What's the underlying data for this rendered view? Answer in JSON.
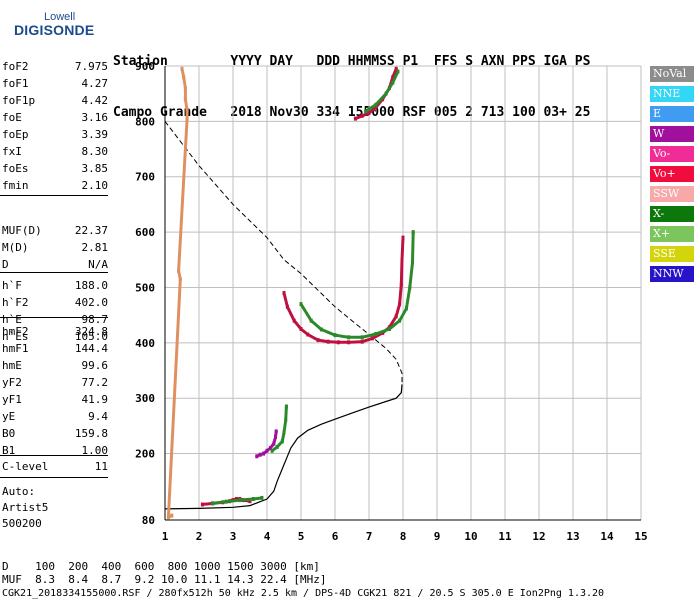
{
  "logo": {
    "line1": "Lowell",
    "line2": "DIGISONDE"
  },
  "header": {
    "row1": "Station        YYYY DAY   DDD HHMMSS P1  FFS S AXN PPS IGA PS",
    "row2": "Campo Grande   2018 Nov30 334 155000 RSF 005 2 713 100 03+ 25"
  },
  "params_group1": [
    {
      "k": "foF2",
      "v": "7.975"
    },
    {
      "k": "foF1",
      "v": "4.27"
    },
    {
      "k": "foF1p",
      "v": "4.42"
    },
    {
      "k": "foE",
      "v": "3.16"
    },
    {
      "k": "foEp",
      "v": "3.39"
    },
    {
      "k": "fxI",
      "v": "8.30"
    },
    {
      "k": "foEs",
      "v": "3.85"
    },
    {
      "k": "fmin",
      "v": "2.10"
    }
  ],
  "params_group2": [
    {
      "k": "MUF(D)",
      "v": "22.37"
    },
    {
      "k": "M(D)",
      "v": "2.81"
    },
    {
      "k": "D",
      "v": "N/A"
    }
  ],
  "params_group3": [
    {
      "k": "h`F",
      "v": "188.0"
    },
    {
      "k": "h`F2",
      "v": "402.0"
    },
    {
      "k": "h`E",
      "v": "98.7"
    },
    {
      "k": "h`Es",
      "v": "105.0"
    }
  ],
  "params_group4": [
    {
      "k": "hmF2",
      "v": "324.8"
    },
    {
      "k": "hmF1",
      "v": "144.4"
    },
    {
      "k": "hmE",
      "v": "99.6"
    },
    {
      "k": "yF2",
      "v": "77.2"
    },
    {
      "k": "yF1",
      "v": "41.9"
    },
    {
      "k": "yE",
      "v": "9.4"
    },
    {
      "k": "B0",
      "v": "159.8"
    },
    {
      "k": "B1",
      "v": "1.00"
    }
  ],
  "clevel": {
    "k": "C-level",
    "v": "11"
  },
  "auto": [
    "Auto:",
    "Artist5",
    "500200"
  ],
  "legend": [
    {
      "label": "NoVal",
      "color": "#8c8c8c"
    },
    {
      "label": "NNE",
      "color": "#33d6f5"
    },
    {
      "label": "E",
      "color": "#3f9cf0"
    },
    {
      "label": "W",
      "color": "#a0109c"
    },
    {
      "label": "Vo-",
      "color": "#f02c96"
    },
    {
      "label": "Vo+",
      "color": "#f00c3c"
    },
    {
      "label": "SSW",
      "color": "#f7a8a8"
    },
    {
      "label": "X-",
      "color": "#0c780c"
    },
    {
      "label": "X+",
      "color": "#7cc45c"
    },
    {
      "label": "SSE",
      "color": "#d4d40c"
    },
    {
      "label": "NNW",
      "color": "#2814c8"
    }
  ],
  "footer": {
    "row1": "D    100  200  400  600  800 1000 1500 3000 [km]",
    "row2": "MUF  8.3  8.4  8.7  9.2 10.0 11.1 14.3 22.4 [MHz]",
    "row3": "CGK21_2018334155000.RSF / 280fx512h 50 kHz 2.5 km / DPS-4D CGK21 821 / 20.5 S 305.0 E Ion2Png 1.3.20"
  },
  "chart_data": {
    "type": "scatter",
    "title": "",
    "xlabel": "",
    "ylabel": "",
    "xlim": [
      1,
      15
    ],
    "ylim": [
      80,
      900
    ],
    "xticks": [
      1,
      2,
      3,
      4,
      5,
      6,
      7,
      8,
      9,
      10,
      11,
      12,
      13,
      14,
      15
    ],
    "yticks": [
      80,
      200,
      300,
      400,
      500,
      600,
      700,
      800,
      900
    ],
    "grid": true,
    "series": [
      {
        "name": "O-trace",
        "color": "#c01040",
        "points": [
          [
            4.5,
            490
          ],
          [
            4.6,
            465
          ],
          [
            4.8,
            440
          ],
          [
            5.0,
            425
          ],
          [
            5.2,
            415
          ],
          [
            5.5,
            405
          ],
          [
            5.8,
            402
          ],
          [
            6.1,
            401
          ],
          [
            6.4,
            401
          ],
          [
            6.8,
            402
          ],
          [
            7.1,
            408
          ],
          [
            7.4,
            418
          ],
          [
            7.6,
            428
          ],
          [
            7.8,
            448
          ],
          [
            7.9,
            470
          ],
          [
            7.95,
            505
          ],
          [
            7.97,
            550
          ],
          [
            8.0,
            590
          ]
        ]
      },
      {
        "name": "X-trace",
        "color": "#2a8a2a",
        "points": [
          [
            5.0,
            470
          ],
          [
            5.3,
            440
          ],
          [
            5.6,
            424
          ],
          [
            6.0,
            414
          ],
          [
            6.4,
            410
          ],
          [
            6.8,
            410
          ],
          [
            7.2,
            416
          ],
          [
            7.6,
            425
          ],
          [
            7.9,
            440
          ],
          [
            8.1,
            462
          ],
          [
            8.2,
            500
          ],
          [
            8.28,
            545
          ],
          [
            8.3,
            600
          ]
        ]
      },
      {
        "name": "F1-trace",
        "color": "#a0109c",
        "points": [
          [
            3.7,
            195
          ],
          [
            3.8,
            198
          ],
          [
            3.9,
            200
          ],
          [
            4.0,
            205
          ],
          [
            4.1,
            210
          ],
          [
            4.2,
            218
          ],
          [
            4.25,
            230
          ],
          [
            4.27,
            240
          ]
        ]
      },
      {
        "name": "F1-X-trace",
        "color": "#2a8a2a",
        "points": [
          [
            4.15,
            205
          ],
          [
            4.3,
            212
          ],
          [
            4.45,
            222
          ],
          [
            4.5,
            238
          ],
          [
            4.55,
            260
          ],
          [
            4.57,
            285
          ]
        ]
      },
      {
        "name": "E-trace",
        "color": "#c01040",
        "points": [
          [
            2.1,
            108
          ],
          [
            2.4,
            110
          ],
          [
            2.7,
            112
          ],
          [
            2.9,
            114
          ],
          [
            3.0,
            116
          ],
          [
            3.1,
            118
          ],
          [
            3.2,
            118
          ],
          [
            3.3,
            116
          ],
          [
            3.5,
            114
          ]
        ]
      },
      {
        "name": "Es-trace",
        "color": "#2a8a2a",
        "points": [
          [
            2.4,
            110
          ],
          [
            2.8,
            113
          ],
          [
            3.2,
            116
          ],
          [
            3.6,
            118
          ],
          [
            3.85,
            120
          ]
        ]
      },
      {
        "name": "Multi-hop",
        "color": "#c01040",
        "points": [
          [
            6.6,
            805
          ],
          [
            6.8,
            810
          ],
          [
            7.0,
            815
          ],
          [
            7.2,
            825
          ],
          [
            7.4,
            840
          ],
          [
            7.6,
            860
          ],
          [
            7.7,
            880
          ],
          [
            7.8,
            895
          ]
        ]
      },
      {
        "name": "Multi-hop-X",
        "color": "#2a8a2a",
        "points": [
          [
            6.9,
            818
          ],
          [
            7.2,
            830
          ],
          [
            7.5,
            850
          ],
          [
            7.7,
            870
          ],
          [
            7.85,
            890
          ]
        ]
      },
      {
        "name": "Scatter",
        "color": "#e09060",
        "points": [
          [
            1.5,
            895
          ],
          [
            1.55,
            880
          ],
          [
            1.6,
            860
          ],
          [
            1.6,
            840
          ],
          [
            1.65,
            820
          ],
          [
            1.65,
            805
          ],
          [
            1.4,
            530
          ],
          [
            1.45,
            515
          ],
          [
            1.1,
            85
          ],
          [
            1.2,
            88
          ]
        ]
      }
    ],
    "profile_solid": [
      [
        1.0,
        100
      ],
      [
        2.0,
        101
      ],
      [
        3.0,
        103
      ],
      [
        3.5,
        106
      ],
      [
        4.0,
        118
      ],
      [
        4.2,
        132
      ],
      [
        4.3,
        150
      ],
      [
        4.4,
        165
      ],
      [
        4.5,
        180
      ],
      [
        4.6,
        195
      ],
      [
        4.7,
        210
      ],
      [
        4.9,
        228
      ],
      [
        5.2,
        242
      ],
      [
        5.6,
        253
      ],
      [
        6.0,
        262
      ],
      [
        6.5,
        273
      ],
      [
        7.0,
        284
      ],
      [
        7.5,
        294
      ],
      [
        7.8,
        300
      ],
      [
        7.95,
        310
      ],
      [
        7.97,
        325
      ]
    ],
    "profile_dashed": [
      [
        1.0,
        800
      ],
      [
        1.5,
        760
      ],
      [
        2.0,
        720
      ],
      [
        2.5,
        685
      ],
      [
        3.0,
        650
      ],
      [
        3.5,
        620
      ],
      [
        4.0,
        590
      ],
      [
        4.5,
        550
      ],
      [
        5.0,
        525
      ],
      [
        5.5,
        495
      ],
      [
        6.0,
        465
      ],
      [
        6.5,
        440
      ],
      [
        7.0,
        415
      ],
      [
        7.5,
        390
      ],
      [
        7.8,
        370
      ],
      [
        7.97,
        345
      ],
      [
        7.97,
        325
      ]
    ]
  }
}
